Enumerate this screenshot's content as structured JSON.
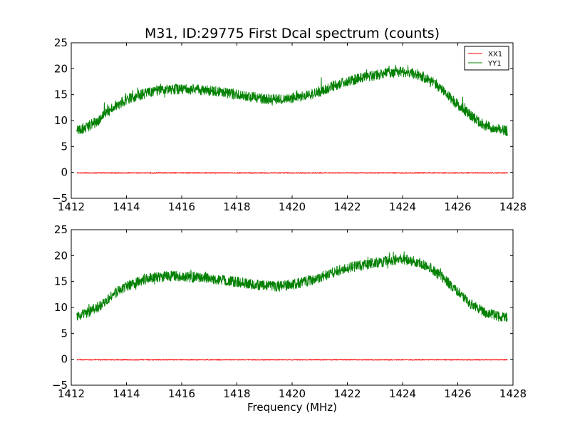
{
  "title": "M31, ID:29775 First Dcal spectrum (counts)",
  "xlabel": "Frequency (MHz)",
  "colors": {
    "XX1": "#ff0000",
    "YY1": "#008000",
    "axes": "#000000",
    "background": "#ffffff"
  },
  "chart_data": [
    {
      "type": "line",
      "panel": "top",
      "title": "M31, ID:29775 First Dcal spectrum (counts)",
      "xlabel": "",
      "ylabel": "",
      "xlim": [
        1412,
        1428
      ],
      "ylim": [
        -5,
        25
      ],
      "xticks": [
        1412,
        1414,
        1416,
        1418,
        1420,
        1422,
        1424,
        1426,
        1428
      ],
      "xtick_labels": [
        "1412",
        "1414",
        "1416",
        "1418",
        "1420",
        "1422",
        "1424",
        "1426",
        "1428"
      ],
      "yticks": [
        -5,
        0,
        5,
        10,
        15,
        20,
        25
      ],
      "ytick_labels": [
        "−5",
        "0",
        "5",
        "10",
        "15",
        "20",
        "25"
      ],
      "grid": false,
      "legend": {
        "placement": "top-right",
        "entries": [
          {
            "name": "XX1",
            "color": "#ff0000"
          },
          {
            "name": "YY1",
            "color": "#008000"
          }
        ]
      },
      "series": [
        {
          "name": "XX1",
          "color": "#ff0000",
          "x": [
            1412.2,
            1413,
            1414,
            1415,
            1416,
            1417,
            1418,
            1419,
            1420,
            1421,
            1422,
            1423,
            1424,
            1425,
            1426,
            1427,
            1427.8
          ],
          "y": [
            -0.1,
            -0.1,
            -0.1,
            -0.1,
            -0.1,
            -0.1,
            -0.1,
            -0.1,
            -0.1,
            -0.1,
            -0.1,
            -0.1,
            -0.1,
            -0.1,
            -0.1,
            -0.1,
            -0.1
          ]
        },
        {
          "name": "YY1",
          "color": "#008000",
          "x": [
            1412.2,
            1412.5,
            1413,
            1413.5,
            1414,
            1414.5,
            1415,
            1415.5,
            1416,
            1416.5,
            1417,
            1417.5,
            1418,
            1418.5,
            1419,
            1419.5,
            1420,
            1420.5,
            1421,
            1421.5,
            1422,
            1422.5,
            1423,
            1423.5,
            1424,
            1424.5,
            1425,
            1425.5,
            1426,
            1426.5,
            1427,
            1427.5,
            1427.8
          ],
          "y": [
            8.0,
            8.6,
            10.0,
            12.5,
            14.0,
            15.0,
            15.7,
            16.0,
            16.1,
            16.0,
            15.8,
            15.4,
            15.0,
            14.6,
            14.2,
            14.1,
            14.3,
            14.8,
            15.6,
            16.7,
            17.6,
            18.2,
            18.8,
            19.2,
            19.4,
            19.0,
            17.8,
            15.8,
            13.0,
            10.8,
            9.0,
            8.3,
            8.0
          ]
        }
      ]
    },
    {
      "type": "line",
      "panel": "bottom",
      "title": "",
      "xlabel": "Frequency (MHz)",
      "ylabel": "",
      "xlim": [
        1412,
        1428
      ],
      "ylim": [
        -5,
        25
      ],
      "xticks": [
        1412,
        1414,
        1416,
        1418,
        1420,
        1422,
        1424,
        1426,
        1428
      ],
      "xtick_labels": [
        "1412",
        "1414",
        "1416",
        "1418",
        "1420",
        "1422",
        "1424",
        "1426",
        "1428"
      ],
      "yticks": [
        -5,
        0,
        5,
        10,
        15,
        20,
        25
      ],
      "ytick_labels": [
        "−5",
        "0",
        "5",
        "10",
        "15",
        "20",
        "25"
      ],
      "grid": false,
      "series": [
        {
          "color": "#ff0000",
          "x": [
            1412.2,
            1413,
            1414,
            1415,
            1416,
            1417,
            1418,
            1419,
            1420,
            1421,
            1422,
            1423,
            1424,
            1425,
            1426,
            1427,
            1427.8
          ],
          "y": [
            -0.1,
            -0.1,
            -0.1,
            -0.1,
            -0.1,
            -0.1,
            -0.1,
            -0.1,
            -0.1,
            -0.1,
            -0.1,
            -0.1,
            -0.1,
            -0.1,
            -0.1,
            -0.1,
            -0.1
          ]
        },
        {
          "color": "#008000",
          "x": [
            1412.2,
            1412.5,
            1413,
            1413.5,
            1414,
            1414.5,
            1415,
            1415.5,
            1416,
            1416.5,
            1417,
            1417.5,
            1418,
            1418.5,
            1419,
            1419.5,
            1420,
            1420.5,
            1421,
            1421.5,
            1422,
            1422.5,
            1423,
            1423.5,
            1424,
            1424.5,
            1425,
            1425.5,
            1426,
            1426.5,
            1427,
            1427.5,
            1427.8
          ],
          "y": [
            8.2,
            8.8,
            10.2,
            12.5,
            14.0,
            15.2,
            15.8,
            16.0,
            16.0,
            15.8,
            15.6,
            15.2,
            14.9,
            14.5,
            14.2,
            14.1,
            14.4,
            15.0,
            15.8,
            16.8,
            17.6,
            18.1,
            18.6,
            19.0,
            19.3,
            18.8,
            17.6,
            15.6,
            13.0,
            10.6,
            8.9,
            8.3,
            8.0
          ]
        }
      ]
    }
  ]
}
